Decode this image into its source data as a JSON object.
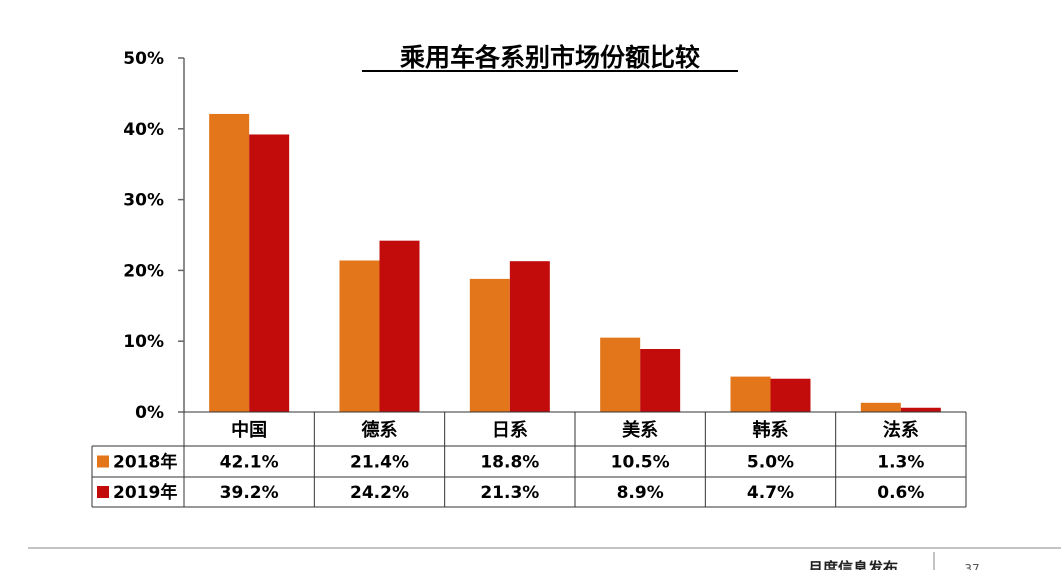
{
  "chart_data": {
    "type": "bar",
    "title": "乘用车各系别市场份额比较",
    "xlabel": "",
    "ylabel": "",
    "ylim": [
      0,
      50
    ],
    "yticks": [
      "0%",
      "10%",
      "20%",
      "30%",
      "40%",
      "50%"
    ],
    "grid": false,
    "legend_placement": "data-table-left",
    "categories": [
      "中国",
      "德系",
      "日系",
      "美系",
      "韩系",
      "法系"
    ],
    "series": [
      {
        "name": "2018年",
        "color": "#E3761B",
        "values": [
          42.1,
          21.4,
          18.8,
          10.5,
          5.0,
          1.3
        ],
        "labels": [
          "42.1%",
          "21.4%",
          "18.8%",
          "10.5%",
          "5.0%",
          "1.3%"
        ]
      },
      {
        "name": "2019年",
        "color": "#C20C0C",
        "values": [
          39.2,
          24.2,
          21.3,
          8.9,
          4.7,
          0.6
        ],
        "labels": [
          "39.2%",
          "24.2%",
          "21.3%",
          "8.9%",
          "4.7%",
          "0.6%"
        ]
      }
    ]
  },
  "footer": {
    "source_text": "月度信息发布",
    "page_number": "37"
  }
}
